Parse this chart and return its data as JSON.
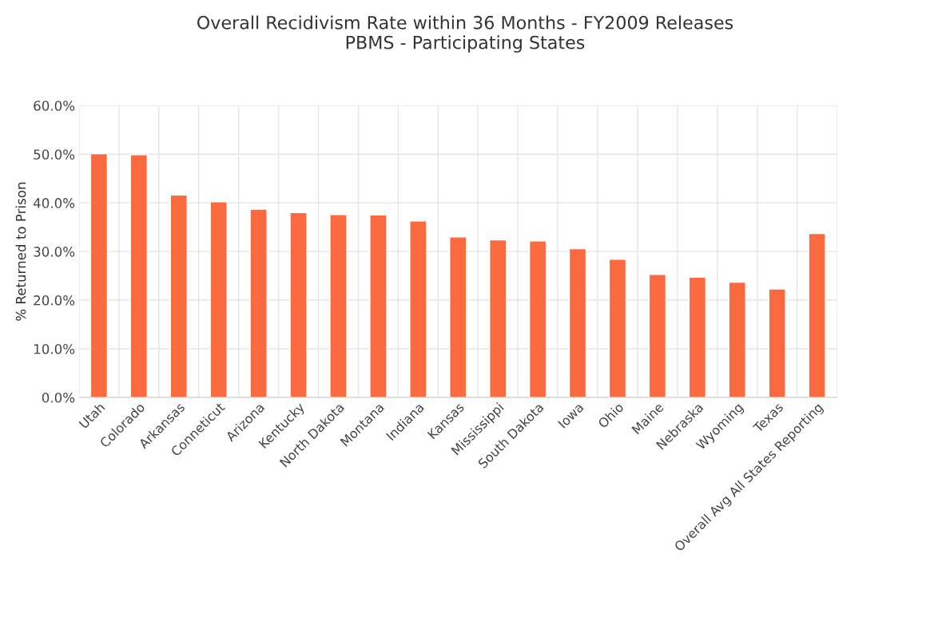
{
  "chart_data": {
    "type": "bar",
    "title": "Overall Recidivism Rate within 36 Months - FY2009 Releases\nPBMS - Participating States",
    "ylabel": "% Returned to Prison",
    "categories": [
      "Utah",
      "Colorado",
      "Arkansas",
      "Conneticut",
      "Arizona",
      "Kentucky",
      "North Dakota",
      "Montana",
      "Indiana",
      "Kansas",
      "Mississippi",
      "South Dakota",
      "Iowa",
      "Ohio",
      "Maine",
      "Nebraska",
      "Wyoming",
      "Texas",
      "Overall Avg All States Reporting"
    ],
    "values": [
      50.1,
      49.9,
      41.6,
      40.2,
      38.7,
      38.0,
      37.6,
      37.5,
      36.3,
      33.0,
      32.4,
      32.2,
      30.6,
      28.4,
      25.3,
      24.7,
      23.7,
      22.3,
      33.7
    ],
    "color": "#fb6a3f",
    "ylim": [
      0,
      60
    ],
    "yticks": [
      {
        "value": 0,
        "label": "0.0%"
      },
      {
        "value": 10,
        "label": "10.0%"
      },
      {
        "value": 20,
        "label": "20.0%"
      },
      {
        "value": 30,
        "label": "30.0%"
      },
      {
        "value": 40,
        "label": "40.0%"
      },
      {
        "value": 50,
        "label": "50.0%"
      },
      {
        "value": 60,
        "label": "60.0%"
      }
    ],
    "grid": true
  }
}
